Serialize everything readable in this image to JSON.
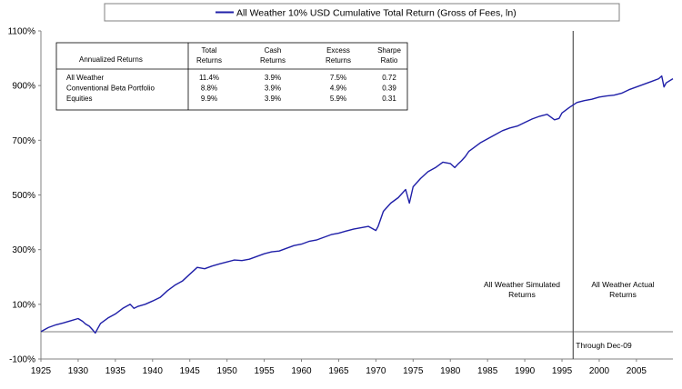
{
  "chart_data": {
    "type": "line",
    "title": "",
    "xlabel": "",
    "ylabel": "",
    "xlim": [
      1925,
      2009.9
    ],
    "ylim": [
      -100,
      1100
    ],
    "yticks": [
      -100,
      100,
      300,
      500,
      700,
      900,
      1100
    ],
    "ytick_labels": [
      "-100%",
      "100%",
      "300%",
      "500%",
      "700%",
      "900%",
      "1100%"
    ],
    "xticks": [
      1925,
      1930,
      1935,
      1940,
      1945,
      1950,
      1955,
      1960,
      1965,
      1970,
      1975,
      1980,
      1985,
      1990,
      1995,
      2000,
      2005
    ],
    "xtick_labels": [
      "1925",
      "1930",
      "1935",
      "1940",
      "1945",
      "1950",
      "1955",
      "1960",
      "1965",
      "1970",
      "1975",
      "1980",
      "1985",
      "1990",
      "1995",
      "2000",
      "2005"
    ],
    "grid": false,
    "legend_position": "top",
    "series": [
      {
        "name": "All Weather 10% USD Cumulative Total Return (Gross of Fees, ln)",
        "color": "#1f1fa8",
        "x": [
          1925.0,
          1926.0,
          1927.0,
          1928.0,
          1929.0,
          1930.0,
          1930.6,
          1931.0,
          1931.5,
          1932.0,
          1932.3,
          1932.6,
          1933.0,
          1933.5,
          1934.0,
          1935.0,
          1936.0,
          1937.0,
          1937.5,
          1938.0,
          1939.0,
          1940.0,
          1941.0,
          1942.0,
          1943.0,
          1944.0,
          1945.0,
          1946.0,
          1947.0,
          1948.0,
          1949.0,
          1950.0,
          1951.0,
          1952.0,
          1953.0,
          1954.0,
          1955.0,
          1956.0,
          1957.0,
          1958.0,
          1959.0,
          1960.0,
          1961.0,
          1962.0,
          1963.0,
          1964.0,
          1965.0,
          1966.0,
          1967.0,
          1968.0,
          1969.0,
          1970.0,
          1970.3,
          1971.0,
          1972.0,
          1973.0,
          1974.0,
          1974.5,
          1975.0,
          1976.0,
          1977.0,
          1978.0,
          1979.0,
          1980.0,
          1980.6,
          1981.0,
          1981.5,
          1982.0,
          1982.5,
          1983.0,
          1984.0,
          1985.0,
          1986.0,
          1987.0,
          1988.0,
          1989.0,
          1990.0,
          1991.0,
          1992.0,
          1993.0,
          1994.0,
          1994.6,
          1995.0,
          1996.0,
          1997.0,
          1998.0,
          1999.0,
          2000.0,
          2001.0,
          2002.0,
          2003.0,
          2004.0,
          2005.0,
          2006.0,
          2007.0,
          2008.0,
          2008.4,
          2008.7,
          2009.0,
          2009.9
        ],
        "y": [
          0,
          15,
          25,
          32,
          40,
          48,
          38,
          28,
          20,
          5,
          -5,
          10,
          30,
          40,
          50,
          65,
          85,
          100,
          85,
          92,
          100,
          112,
          125,
          150,
          170,
          185,
          210,
          235,
          230,
          240,
          248,
          255,
          262,
          260,
          265,
          275,
          285,
          292,
          295,
          305,
          315,
          320,
          330,
          335,
          345,
          355,
          360,
          368,
          375,
          380,
          385,
          370,
          385,
          440,
          470,
          490,
          520,
          470,
          530,
          560,
          585,
          600,
          620,
          615,
          600,
          612,
          625,
          640,
          660,
          670,
          690,
          705,
          720,
          735,
          745,
          752,
          765,
          778,
          788,
          795,
          775,
          780,
          800,
          820,
          838,
          845,
          850,
          858,
          862,
          865,
          872,
          885,
          895,
          905,
          915,
          925,
          935,
          895,
          910,
          925
        ]
      }
    ],
    "divider_year": 1996.5,
    "annotations": {
      "simulated": "All Weather Simulated Returns",
      "actual": "All Weather Actual Returns",
      "through": "Through Dec-09"
    },
    "table": {
      "headers": [
        {
          "line1": "Annualized Returns",
          "line2": ""
        },
        {
          "line1": "Total",
          "line2": "Returns"
        },
        {
          "line1": "Cash",
          "line2": "Returns"
        },
        {
          "line1": "Excess",
          "line2": "Returns"
        },
        {
          "line1": "Sharpe",
          "line2": "Ratio"
        }
      ],
      "rows": [
        {
          "label": "All Weather",
          "total": "11.4%",
          "cash": "3.9%",
          "excess": "7.5%",
          "sharpe": "0.72"
        },
        {
          "label": "Conventional Beta Portfolio",
          "total": "8.8%",
          "cash": "3.9%",
          "excess": "4.9%",
          "sharpe": "0.39"
        },
        {
          "label": "Equities",
          "total": "9.9%",
          "cash": "3.9%",
          "excess": "5.9%",
          "sharpe": "0.31"
        }
      ]
    }
  }
}
